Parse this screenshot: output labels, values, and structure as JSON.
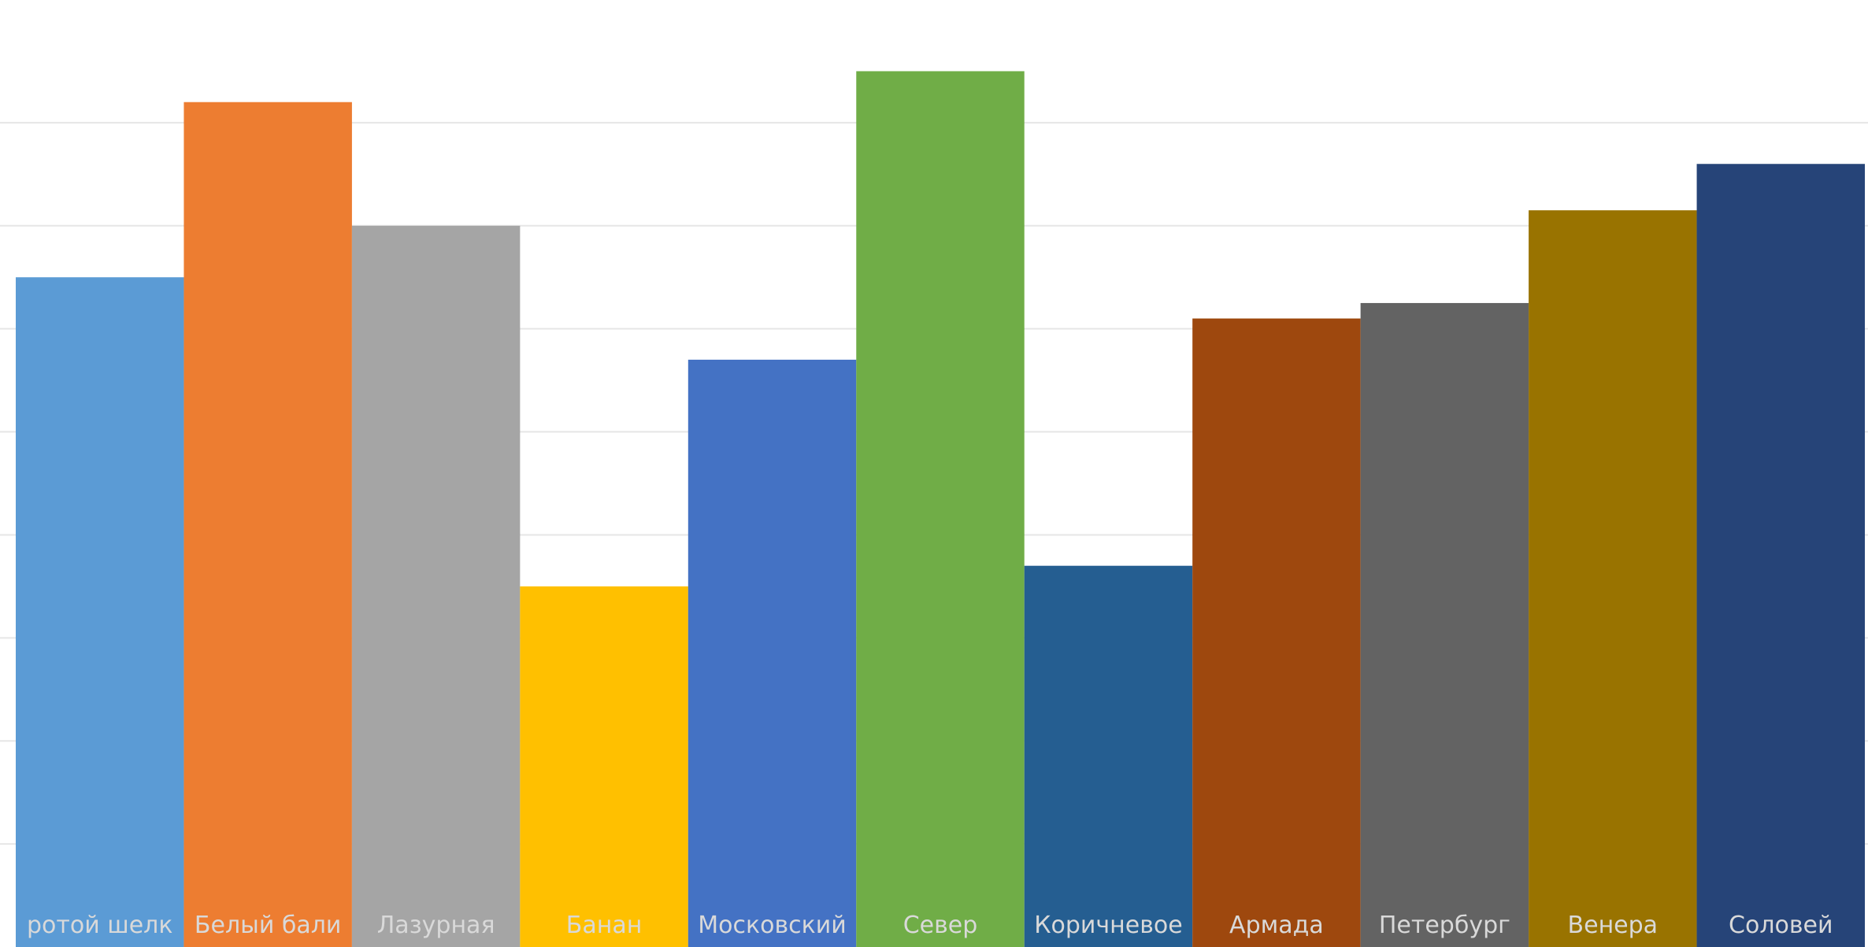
{
  "chart_data": {
    "type": "bar",
    "categories": [
      "",
      "",
      "",
      "",
      "",
      "",
      "",
      "",
      "",
      "",
      ""
    ],
    "values": [
      65,
      82,
      70,
      35,
      57,
      85,
      37,
      61,
      62.5,
      71.5,
      76
    ],
    "ylim": [
      0,
      90
    ],
    "grid": true,
    "grid_values": [
      10,
      20,
      30,
      40,
      50,
      60,
      70,
      80
    ],
    "colors": [
      "#5B9BD5",
      "#ED7D31",
      "#A5A5A5",
      "#FFC000",
      "#4472C4",
      "#70AD47",
      "#255E91",
      "#9E480E",
      "#636363",
      "#997300",
      "#264478"
    ],
    "data_labels": [
      "ротой шелк",
      "Белый бали",
      "Лазурная",
      "Банан",
      "Московский",
      "Север",
      "Коричневое",
      "Армада",
      "Петербург",
      "Венера",
      "Соловей"
    ]
  }
}
